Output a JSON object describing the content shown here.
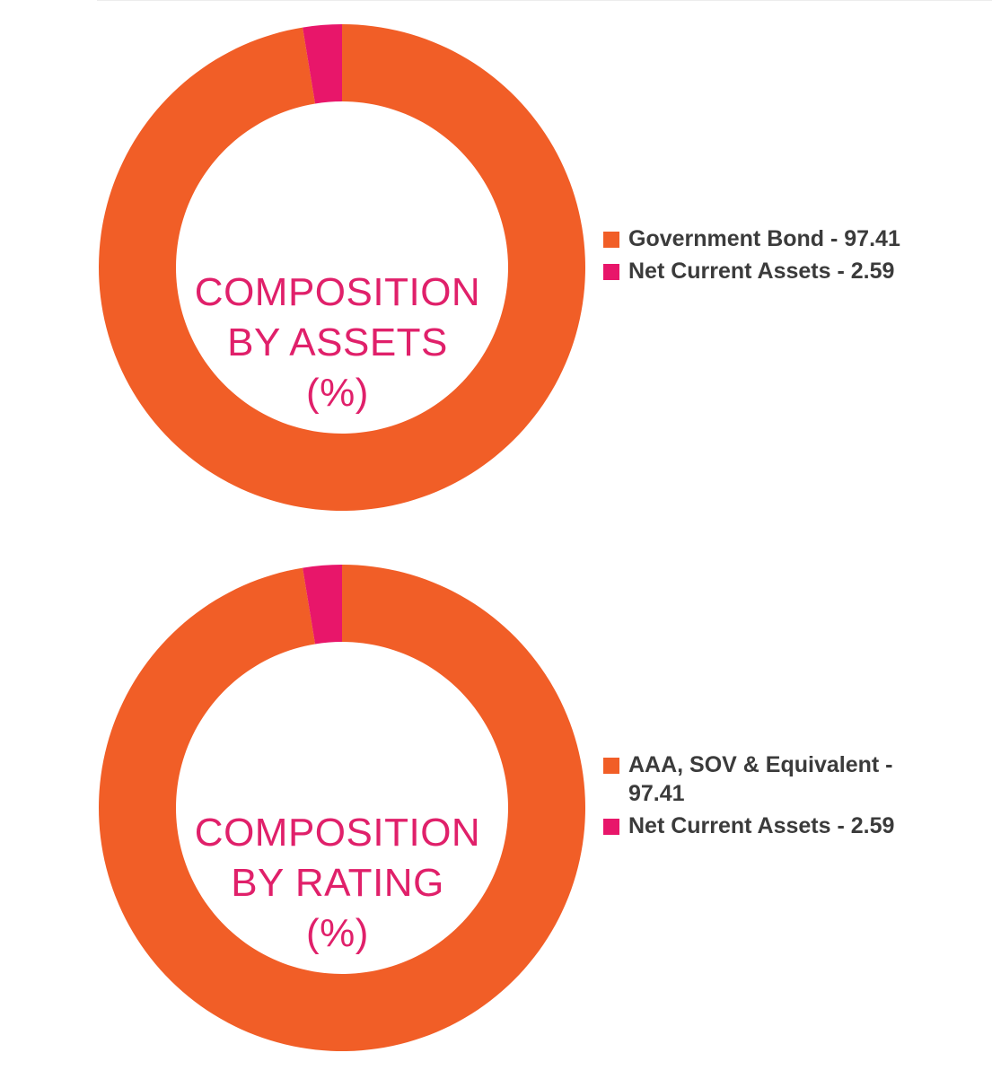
{
  "colors": {
    "primary": "#f15e27",
    "secondary": "#e8166a",
    "title": "#e0206a",
    "legend_text": "#3b3b3b"
  },
  "chart_data": [
    {
      "type": "pie",
      "center_label": [
        "COMPOSITION",
        "BY ASSETS",
        "(%)"
      ],
      "slices": [
        {
          "label": "Government Bond - 97.41",
          "value": 97.41,
          "color": "#f15e27"
        },
        {
          "label": "Net Current Assets - 2.59",
          "value": 2.59,
          "color": "#e8166a"
        }
      ],
      "legend_position": "right"
    },
    {
      "type": "pie",
      "center_label": [
        "COMPOSITION",
        "BY RATING",
        "(%)"
      ],
      "slices": [
        {
          "label": "AAA, SOV & Equivalent - 97.41",
          "value": 97.41,
          "color": "#f15e27"
        },
        {
          "label": "Net Current Assets - 2.59",
          "value": 2.59,
          "color": "#e8166a"
        }
      ],
      "legend_position": "right"
    }
  ]
}
